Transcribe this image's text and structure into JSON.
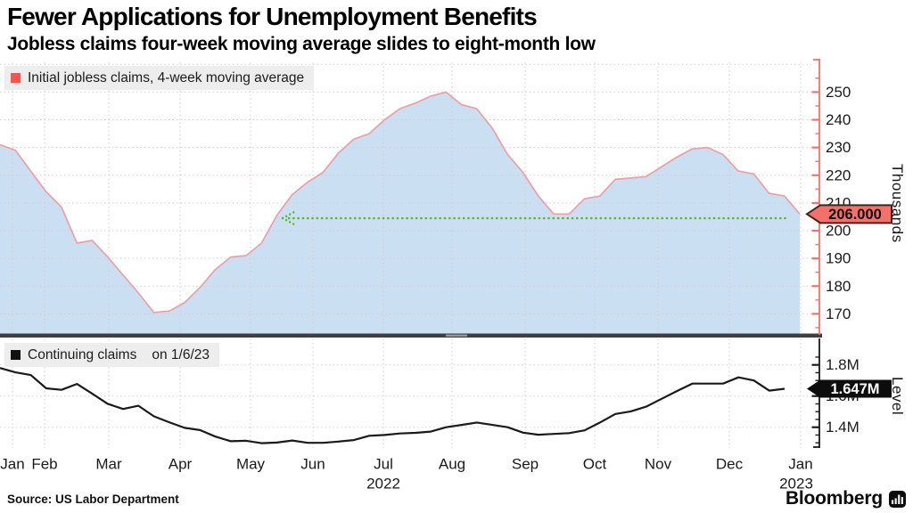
{
  "header": {
    "title": "Fewer Applications for Unemployment Benefits",
    "subtitle": "Jobless claims four-week moving average slides to eight-month low"
  },
  "footer": {
    "source": "Source: US Labor Department",
    "brand": "Bloomberg"
  },
  "top_panel": {
    "legend_label": "Initial jobless claims, 4-week moving average",
    "axis_title": "Thousands",
    "callout_label": "206.000",
    "ytick_labels": [
      "170",
      "180",
      "190",
      "200",
      "210",
      "220",
      "230",
      "240",
      "250"
    ],
    "colors": {
      "line": "#ec9fa3",
      "fill": "#cbdff3",
      "axis": "#f4716a",
      "callout_fill": "#f4716a",
      "callout_border": "#4a201c",
      "callout_text": "#0d0d0d",
      "legend_marker": "#f4554d",
      "reference": "#62b52a",
      "grid": "#d9cbcb"
    }
  },
  "bottom_panel": {
    "legend_series": "Continuing claims",
    "legend_date": "on 1/6/23",
    "axis_title": "Level",
    "callout_label": "1.647M",
    "ytick_labels": [
      "1.4M",
      "1.6M",
      "1.8M"
    ],
    "colors": {
      "line": "#1a1a1a",
      "axis": "#1a1a1a",
      "callout_fill": "#0d0d0d",
      "callout_text": "#ffffff",
      "legend_marker": "#111111",
      "grid": "#d6d6d6"
    }
  },
  "x_axis": {
    "month_labels": [
      "Jan",
      "Feb",
      "Mar",
      "Apr",
      "May",
      "Jun",
      "Jul",
      "Aug",
      "Sep",
      "Oct",
      "Nov",
      "Dec",
      "Jan"
    ],
    "year_labels": [
      {
        "text": "2022",
        "under_month_index": 6
      },
      {
        "text": "2023",
        "under_month_index": 12
      }
    ]
  },
  "chart_data": [
    {
      "type": "area",
      "name": "Initial jobless claims, 4-week moving average",
      "unit": "thousands",
      "frequency": "weekly",
      "x_start": "Jan 2022",
      "x_end": "Jan 2023",
      "ylim": [
        162,
        261
      ],
      "yticks": [
        170,
        180,
        190,
        200,
        210,
        220,
        230,
        240,
        250
      ],
      "minor_ticks": [
        165,
        175,
        185,
        195,
        205,
        215,
        225,
        235,
        245,
        255
      ],
      "latest_value": 206.0,
      "reference_line": {
        "level": 204.5,
        "marks_value": 206.0,
        "style": "dotted-arrow-left"
      },
      "values": [
        231,
        229,
        221.5,
        214,
        208.5,
        195.5,
        196.5,
        190.5,
        184,
        177.5,
        170.5,
        171,
        174,
        179.5,
        186,
        190.5,
        191,
        195.5,
        205.5,
        213,
        217.5,
        221,
        228,
        233,
        235,
        240,
        244,
        246,
        248.5,
        250,
        245.5,
        244,
        237,
        227.5,
        221,
        212.5,
        206,
        206,
        211.5,
        212.5,
        218.5,
        219,
        219.5,
        223,
        226.5,
        229.5,
        230,
        227.5,
        221.5,
        220.5,
        213.5,
        212.5,
        206
      ]
    },
    {
      "type": "line",
      "name": "Continuing claims",
      "unit": "millions",
      "frequency": "weekly",
      "as_of": "1/6/23",
      "ylim": [
        1.28,
        1.87
      ],
      "yticks": [
        1.4,
        1.6,
        1.8
      ],
      "minor_ticks": [
        1.3,
        1.35,
        1.45,
        1.5,
        1.55,
        1.65,
        1.7,
        1.75,
        1.85
      ],
      "latest_value": 1.647,
      "values": [
        1.78,
        1.752,
        1.735,
        1.65,
        1.64,
        1.678,
        1.615,
        1.55,
        1.517,
        1.538,
        1.47,
        1.432,
        1.396,
        1.382,
        1.34,
        1.31,
        1.313,
        1.298,
        1.302,
        1.315,
        1.3,
        1.3,
        1.308,
        1.318,
        1.345,
        1.35,
        1.36,
        1.364,
        1.372,
        1.4,
        1.415,
        1.43,
        1.415,
        1.4,
        1.365,
        1.352,
        1.357,
        1.362,
        1.38,
        1.43,
        1.485,
        1.502,
        1.532,
        1.582,
        1.632,
        1.68,
        1.68,
        1.68,
        1.72,
        1.7,
        1.635,
        1.647
      ]
    }
  ]
}
